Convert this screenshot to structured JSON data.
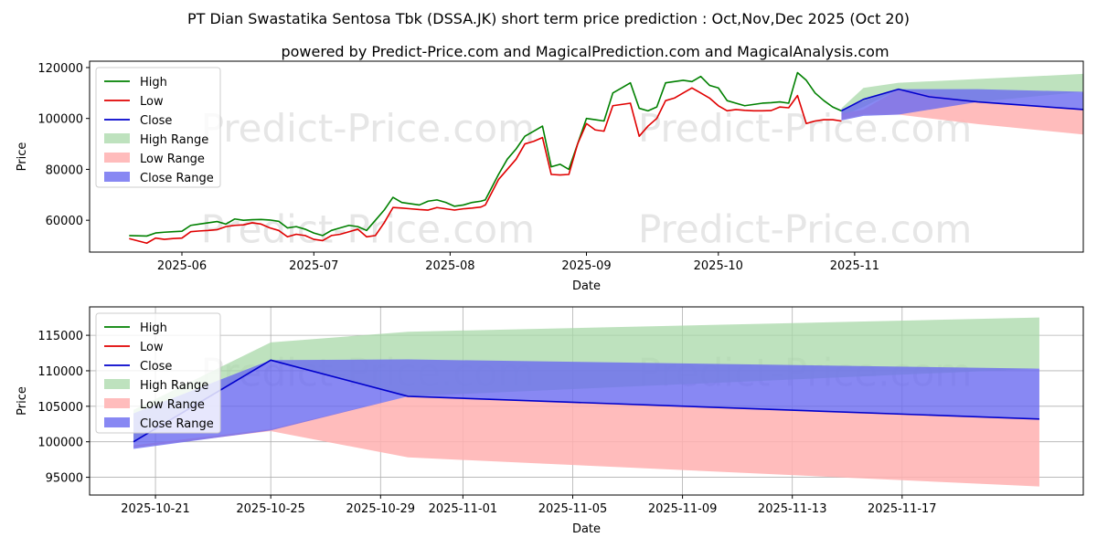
{
  "title": "PT Dian Swastatika Sentosa Tbk (DSSA.JK) short term price prediction : Oct,Nov,Dec 2025 (Oct 20)",
  "subtitle": "powered by Predict-Price.com and MagicalPrediction.com and MagicalAnalysis.com",
  "watermark": "Predict-Price.com",
  "colors": {
    "high": "#008000",
    "low": "#e00000",
    "close": "#0000cc",
    "high_range": "#a8d8a8",
    "low_range": "#ffb0b0",
    "close_range": "#6a6af0"
  },
  "chart_data": [
    {
      "type": "line",
      "title": "",
      "xlabel": "Date",
      "ylabel": "Price",
      "x_domain": [
        -13,
        213
      ],
      "ylim": [
        47500,
        122500
      ],
      "x_ticks": [
        {
          "day": 8,
          "label": "2025-06"
        },
        {
          "day": 38,
          "label": "2025-07"
        },
        {
          "day": 69,
          "label": "2025-08"
        },
        {
          "day": 100,
          "label": "2025-09"
        },
        {
          "day": 130,
          "label": "2025-10"
        },
        {
          "day": 161,
          "label": "2025-11"
        }
      ],
      "y_ticks": [
        60000,
        80000,
        100000,
        120000
      ],
      "legend": [
        "High",
        "Low",
        "Close",
        "High Range",
        "Low Range",
        "Close Range"
      ],
      "legend_position": "top-left",
      "grid": false,
      "series": [
        {
          "name": "High",
          "x": [
            -4,
            0,
            2,
            4,
            6,
            8,
            10,
            12,
            14,
            16,
            18,
            20,
            22,
            24,
            26,
            28,
            30,
            32,
            34,
            36,
            38,
            40,
            42,
            44,
            46,
            48,
            50,
            52,
            54,
            56,
            58,
            60,
            62,
            64,
            66,
            68,
            70,
            72,
            74,
            76,
            77,
            80,
            82,
            84,
            86,
            88,
            90,
            92,
            94,
            96,
            98,
            100,
            102,
            104,
            106,
            108,
            110,
            112,
            114,
            116,
            118,
            120,
            122,
            124,
            126,
            128,
            130,
            132,
            134,
            136,
            138,
            140,
            142,
            144,
            146,
            148,
            150,
            152,
            154,
            156,
            158
          ],
          "values": [
            54000,
            53800,
            55000,
            55300,
            55500,
            55700,
            58000,
            58500,
            59000,
            59500,
            58500,
            60500,
            60000,
            60200,
            60300,
            60100,
            59600,
            57000,
            57500,
            56500,
            55000,
            54000,
            56000,
            57000,
            58000,
            57500,
            56000,
            60000,
            64000,
            69000,
            67000,
            66500,
            66000,
            67500,
            68000,
            67000,
            65500,
            66000,
            67000,
            67500,
            68000,
            78000,
            84000,
            88000,
            93000,
            95000,
            97000,
            81000,
            82000,
            80000,
            90000,
            100000,
            99500,
            99000,
            110000,
            112000,
            114000,
            104000,
            103000,
            104500,
            114000,
            114500,
            115000,
            114500,
            116500,
            113000,
            112000,
            107000,
            106000,
            105000,
            105500,
            106000,
            106200,
            106500,
            106000,
            118000,
            115000,
            110000,
            107000,
            104500,
            103000
          ]
        },
        {
          "name": "Low",
          "x": [
            -4,
            0,
            2,
            4,
            6,
            8,
            10,
            12,
            14,
            16,
            18,
            20,
            22,
            24,
            26,
            28,
            30,
            32,
            34,
            36,
            38,
            40,
            42,
            44,
            46,
            48,
            50,
            52,
            54,
            56,
            58,
            60,
            62,
            64,
            66,
            68,
            70,
            72,
            74,
            76,
            77,
            80,
            82,
            84,
            86,
            88,
            90,
            92,
            94,
            96,
            98,
            100,
            102,
            104,
            106,
            108,
            110,
            112,
            114,
            116,
            118,
            120,
            122,
            124,
            126,
            128,
            130,
            132,
            134,
            136,
            138,
            140,
            142,
            144,
            146,
            148,
            150,
            152,
            154,
            156,
            158
          ],
          "values": [
            52800,
            51000,
            53000,
            52500,
            52800,
            53000,
            55500,
            55800,
            56000,
            56300,
            57500,
            58000,
            58200,
            59000,
            58500,
            57000,
            56000,
            53500,
            54500,
            54000,
            52500,
            52000,
            54000,
            54500,
            55500,
            56500,
            53500,
            54000,
            59000,
            65000,
            64800,
            64500,
            64200,
            64000,
            65000,
            64500,
            64000,
            64500,
            64800,
            65200,
            66000,
            76000,
            80000,
            84000,
            90000,
            91000,
            92500,
            78000,
            77800,
            78000,
            90000,
            98000,
            95500,
            95000,
            105000,
            105500,
            106000,
            93000,
            97000,
            100000,
            107000,
            108000,
            110000,
            112000,
            110000,
            108000,
            105000,
            103000,
            103500,
            103200,
            103000,
            103000,
            103100,
            104500,
            104200,
            109000,
            98000,
            99000,
            99500,
            99500,
            99000
          ]
        },
        {
          "name": "Close",
          "x": [
            158,
            163,
            171,
            178,
            189,
            213
          ],
          "values": [
            103000,
            107500,
            111500,
            108500,
            106500,
            103500
          ]
        }
      ],
      "bands": [
        {
          "name": "High Range",
          "x": [
            158,
            163,
            171,
            189,
            213
          ],
          "upper": [
            104000,
            112000,
            114000,
            115500,
            117500
          ],
          "lower": [
            101000,
            104500,
            111500,
            106500,
            110500
          ]
        },
        {
          "name": "Low Range",
          "x": [
            158,
            163,
            171,
            189,
            213
          ],
          "upper": [
            102000,
            103500,
            111500,
            106500,
            103500
          ],
          "lower": [
            99500,
            101500,
            101500,
            97800,
            93700
          ]
        },
        {
          "name": "Close Range",
          "x": [
            158,
            163,
            171,
            189,
            213
          ],
          "upper": [
            103500,
            107000,
            111500,
            111500,
            110500
          ],
          "lower": [
            99200,
            101000,
            101500,
            106500,
            103500
          ]
        }
      ]
    },
    {
      "type": "line",
      "title": "",
      "xlabel": "Date",
      "ylabel": "Price",
      "x_domain": [
        -1.6,
        34.6
      ],
      "ylim": [
        92500,
        119000
      ],
      "x_ticks": [
        {
          "day": 0.8,
          "label": "2025-10-21"
        },
        {
          "day": 5,
          "label": "2025-10-25"
        },
        {
          "day": 9,
          "label": "2025-10-29"
        },
        {
          "day": 12,
          "label": "2025-11-01"
        },
        {
          "day": 16,
          "label": "2025-11-05"
        },
        {
          "day": 20,
          "label": "2025-11-09"
        },
        {
          "day": 24,
          "label": "2025-11-13"
        },
        {
          "day": 28,
          "label": "2025-11-17"
        }
      ],
      "y_ticks": [
        95000,
        100000,
        105000,
        110000,
        115000
      ],
      "legend": [
        "High",
        "Low",
        "Close",
        "High Range",
        "Low Range",
        "Close Range"
      ],
      "legend_position": "top-left",
      "grid": true,
      "series": [
        {
          "name": "Close",
          "x": [
            0,
            5,
            10,
            33
          ],
          "values": [
            100000,
            111500,
            106400,
            103200
          ]
        }
      ],
      "bands": [
        {
          "name": "High Range",
          "x": [
            0,
            5,
            10,
            33
          ],
          "upper": [
            104500,
            114000,
            115500,
            117500
          ],
          "lower": [
            100000,
            111500,
            106400,
            110300
          ]
        },
        {
          "name": "Low Range",
          "x": [
            0,
            5,
            10,
            33
          ],
          "upper": [
            99500,
            101800,
            106400,
            103200
          ],
          "lower": [
            99200,
            101500,
            97800,
            93700
          ]
        },
        {
          "name": "Close Range",
          "x": [
            0,
            5,
            10,
            33
          ],
          "upper": [
            104000,
            111500,
            111600,
            110300
          ],
          "lower": [
            99000,
            101600,
            106400,
            103200
          ]
        }
      ]
    }
  ]
}
